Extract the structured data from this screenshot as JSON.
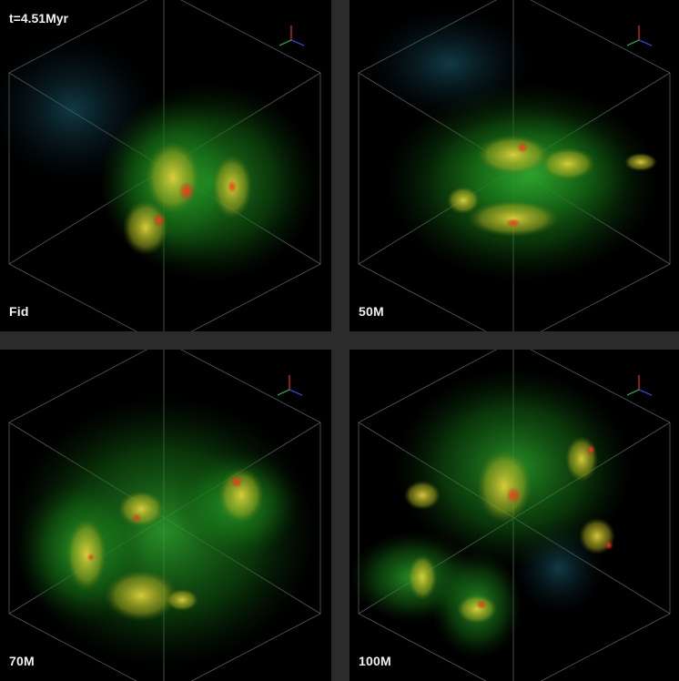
{
  "time_label": "t=4.51Myr",
  "panels": [
    {
      "label": "Fid"
    },
    {
      "label": "50M"
    },
    {
      "label": "70M"
    },
    {
      "label": "100M"
    }
  ],
  "colors": {
    "background": "#000000",
    "separator": "#2b2b2b",
    "gas_low": "#1f8f1f",
    "gas_mid": "#c8c020",
    "gas_high": "#e0301a",
    "halo": "#1d5a70",
    "box_lines": "#6a6a6a"
  },
  "icons": [
    "axes-triad-icon"
  ]
}
